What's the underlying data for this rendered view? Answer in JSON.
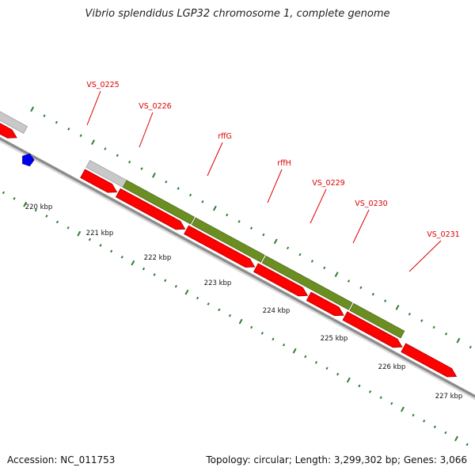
{
  "title": "Vibrio splendidus LGP32 chromosome 1, complete genome",
  "footer": {
    "accession": "Accession: NC_011753",
    "stats": "Topology: circular; Length: 3,299,302 bp; Genes: 3,066"
  },
  "colors": {
    "background": "#ffffff",
    "backbone": "#8c8c8c",
    "cds_forward": "#ff0000",
    "gene_track_grey": "#c8c8c8",
    "gene_track_green": "#6b8e23",
    "gene_track_cyan": "#22cccc",
    "feature_blue": "#0000ee",
    "ticks": "#2e7d32",
    "labels": "#dd0000"
  },
  "gene_labels": [
    "VS_0225",
    "VS_0226",
    "rffG",
    "rffH",
    "VS_0229",
    "VS_0230",
    "VS_0231"
  ],
  "scale_labels": [
    "220 kbp",
    "221 kbp",
    "222 kbp",
    "223 kbp",
    "224 kbp",
    "225 kbp",
    "226 kbp",
    "227 kbp"
  ]
}
